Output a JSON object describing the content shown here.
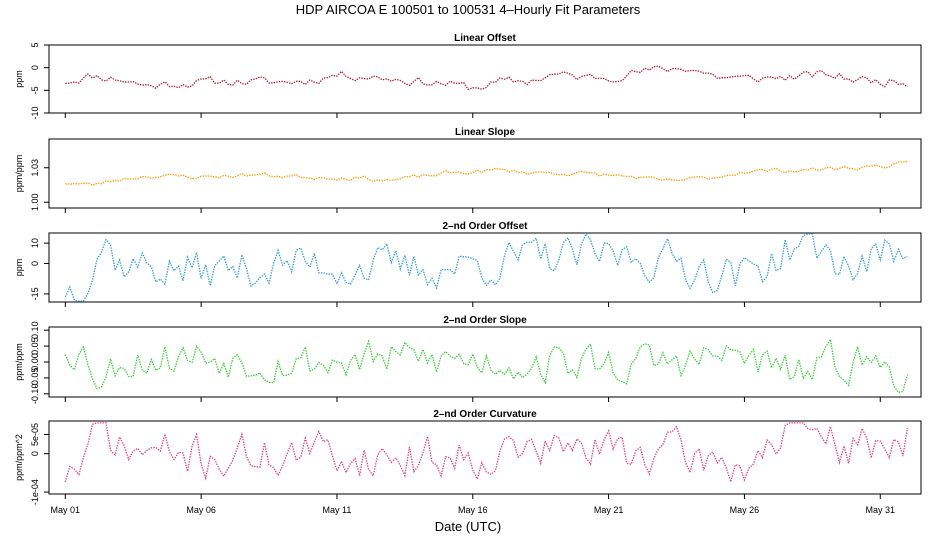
{
  "title": "HDP    AIRCOA E    100501 to 100531    4–Hourly Fit Parameters",
  "xlabel": "Date (UTC)",
  "x_ticks": [
    "May 01",
    "May 06",
    "May 11",
    "May 16",
    "May 21",
    "May 26",
    "May 31"
  ],
  "chart_data": [
    {
      "type": "line",
      "title": "Linear Offset",
      "ylabel": "ppm",
      "color": "#b2182b",
      "xlim": [
        0.4,
        32.5
      ],
      "ylim": [
        -10,
        5
      ],
      "y_ticks": [
        {
          "v": 5,
          "label": "5"
        },
        {
          "v": 0,
          "label": "0"
        },
        {
          "v": -5,
          "label": "-5"
        },
        {
          "v": -10,
          "label": "-10"
        }
      ],
      "gen": {
        "seed": 11,
        "amp": 0.9,
        "lo": -6.5,
        "hi": 1
      },
      "trend": [
        [
          1,
          -3
        ],
        [
          2,
          -1.8
        ],
        [
          3,
          -2.5
        ],
        [
          4,
          -4
        ],
        [
          5,
          -3.5
        ],
        [
          7,
          -3
        ],
        [
          9,
          -3.2
        ],
        [
          10,
          -2.8
        ],
        [
          11,
          -1.5
        ],
        [
          12,
          -1.8
        ],
        [
          14,
          -3
        ],
        [
          15,
          -3.5
        ],
        [
          16,
          -4.5
        ],
        [
          17,
          -3.2
        ],
        [
          18,
          -3
        ],
        [
          19,
          -1.5
        ],
        [
          20,
          -2.2
        ],
        [
          21,
          -2
        ],
        [
          22,
          -1
        ],
        [
          23,
          -0.4
        ],
        [
          24,
          0
        ],
        [
          25,
          -2
        ],
        [
          26,
          -2.5
        ],
        [
          28,
          -2
        ],
        [
          29,
          -1.5
        ],
        [
          30,
          -2.5
        ],
        [
          31,
          -3
        ],
        [
          32,
          -3.2
        ]
      ]
    },
    {
      "type": "line",
      "title": "Linear Slope",
      "ylabel": "ppm/ppm",
      "color": "#ff9900",
      "xlim": [
        0.4,
        32.5
      ],
      "ylim": [
        0.995,
        1.055
      ],
      "y_ticks": [
        {
          "v": 1.0,
          "label": "1.00"
        },
        {
          "v": 1.03,
          "label": "1.03"
        }
      ],
      "gen": {
        "seed": 23,
        "amp": 0.0018,
        "lo": 1.01,
        "hi": 1.045
      },
      "trend": [
        [
          1,
          1.017
        ],
        [
          2,
          1.015
        ],
        [
          3,
          1.02
        ],
        [
          4,
          1.023
        ],
        [
          6,
          1.022
        ],
        [
          8,
          1.024
        ],
        [
          10,
          1.022
        ],
        [
          12,
          1.021
        ],
        [
          13,
          1.019
        ],
        [
          15,
          1.025
        ],
        [
          17,
          1.028
        ],
        [
          18,
          1.026
        ],
        [
          20,
          1.025
        ],
        [
          22,
          1.022
        ],
        [
          23,
          1.018
        ],
        [
          24,
          1.02
        ],
        [
          25,
          1.022
        ],
        [
          26,
          1.027
        ],
        [
          28,
          1.028
        ],
        [
          30,
          1.03
        ],
        [
          32,
          1.033
        ]
      ]
    },
    {
      "type": "line",
      "title": "2–nd Order Offset",
      "ylabel": "ppm",
      "color": "#3399dd",
      "xlim": [
        0.4,
        32.5
      ],
      "ylim": [
        -19,
        15
      ],
      "y_ticks": [
        {
          "v": 10,
          "label": "10"
        },
        {
          "v": 0,
          "label": "0"
        },
        {
          "v": -15,
          "label": "-15"
        }
      ],
      "gen": {
        "seed": 37,
        "amp": 9,
        "lo": -18.5,
        "hi": 14.5
      },
      "trend": [
        [
          1,
          -12
        ],
        [
          1.6,
          -12
        ],
        [
          2.4,
          12
        ],
        [
          3,
          0
        ],
        [
          6,
          -4
        ],
        [
          10,
          0
        ],
        [
          14,
          -3
        ],
        [
          18,
          2
        ],
        [
          22,
          4
        ],
        [
          26,
          -6
        ],
        [
          28,
          10
        ],
        [
          30,
          -2
        ],
        [
          32,
          8
        ]
      ]
    },
    {
      "type": "line",
      "title": "2–nd Order Slope",
      "ylabel": "ppm/ppm",
      "color": "#33cc33",
      "xlim": [
        0.4,
        32.5
      ],
      "ylim": [
        -0.11,
        0.11
      ],
      "y_ticks": [
        {
          "v": 0.1,
          "label": "0.10"
        },
        {
          "v": 0.05,
          "label": "0.05"
        },
        {
          "v": 0.0,
          "label": "0.00"
        },
        {
          "v": -0.05,
          "label": "-0.05"
        },
        {
          "v": -0.1,
          "label": "-0.10"
        }
      ],
      "gen": {
        "seed": 53,
        "amp": 0.055,
        "lo": -0.105,
        "hi": 0.105
      },
      "trend": [
        [
          1,
          0.05
        ],
        [
          1.6,
          0.04
        ],
        [
          2.4,
          -0.06
        ],
        [
          3,
          0.01
        ],
        [
          6,
          0.02
        ],
        [
          10,
          0.0
        ],
        [
          14,
          0.01
        ],
        [
          18,
          0.0
        ],
        [
          22,
          -0.01
        ],
        [
          26,
          0.02
        ],
        [
          27,
          -0.02
        ],
        [
          28,
          -0.04
        ],
        [
          30,
          0.01
        ],
        [
          32,
          -0.04
        ]
      ]
    },
    {
      "type": "line",
      "title": "2–nd Order Curvature",
      "ylabel": "ppm/ppm^2",
      "color": "#e0407a",
      "xlim": [
        0.4,
        32.5
      ],
      "ylim": [
        -0.000105,
        8.5e-05
      ],
      "y_ticks": [
        {
          "v": 5e-05,
          "label": "5e-05"
        },
        {
          "v": 0.0,
          "label": "0"
        },
        {
          "v": -0.0001,
          "label": "-1e-04"
        }
      ],
      "gen": {
        "seed": 71,
        "amp": 5e-05,
        "lo": -0.0001,
        "hi": 8e-05
      },
      "trend": [
        [
          1,
          -5e-05
        ],
        [
          1.6,
          -3e-05
        ],
        [
          2.4,
          7e-05
        ],
        [
          3,
          1e-05
        ],
        [
          6,
          -1e-05
        ],
        [
          10,
          0.0
        ],
        [
          14,
          -1e-05
        ],
        [
          18,
          1e-05
        ],
        [
          22,
          1e-05
        ],
        [
          26,
          -3e-05
        ],
        [
          27,
          3e-05
        ],
        [
          28,
          6e-05
        ],
        [
          30,
          1e-05
        ],
        [
          32,
          5e-05
        ]
      ]
    }
  ]
}
